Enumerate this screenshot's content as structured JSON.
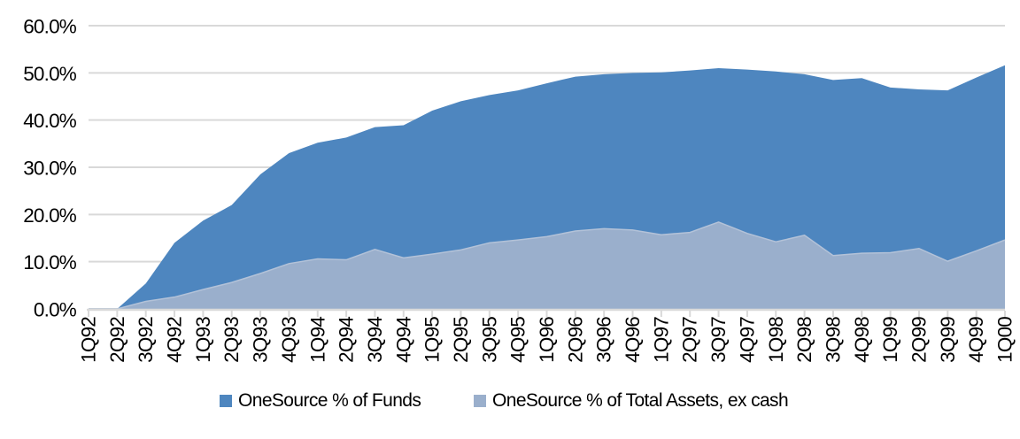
{
  "chart_data": {
    "type": "area",
    "title": "",
    "xlabel": "",
    "ylabel": "",
    "categories": [
      "1Q92",
      "2Q92",
      "3Q92",
      "4Q92",
      "1Q93",
      "2Q93",
      "3Q93",
      "4Q93",
      "1Q94",
      "2Q94",
      "3Q94",
      "4Q94",
      "1Q95",
      "2Q95",
      "3Q95",
      "4Q95",
      "1Q96",
      "2Q96",
      "3Q96",
      "4Q96",
      "1Q97",
      "2Q97",
      "3Q97",
      "4Q97",
      "1Q98",
      "2Q98",
      "3Q98",
      "4Q98",
      "1Q99",
      "2Q99",
      "3Q99",
      "4Q99",
      "1Q00"
    ],
    "series": [
      {
        "name": "OneSource % of Funds",
        "color": "#4E86BF",
        "values": [
          0.0,
          0.0,
          5.4,
          14.0,
          18.7,
          22.0,
          28.5,
          33.0,
          35.2,
          36.3,
          38.5,
          38.9,
          42.0,
          44.0,
          45.3,
          46.3,
          47.8,
          49.2,
          49.7,
          50.0,
          50.1,
          50.5,
          51.0,
          50.7,
          50.3,
          49.7,
          48.5,
          48.9,
          46.9,
          46.5,
          46.3,
          49.0,
          51.6
        ]
      },
      {
        "name": "OneSource % of Total Assets, ex cash",
        "color": "#9AAFCC",
        "values": [
          0.0,
          0.0,
          1.6,
          2.5,
          4.1,
          5.6,
          7.5,
          9.6,
          10.6,
          10.4,
          12.6,
          10.8,
          11.6,
          12.5,
          14.0,
          14.6,
          15.3,
          16.5,
          17.0,
          16.7,
          15.7,
          16.2,
          18.4,
          16.0,
          14.2,
          15.6,
          11.3,
          11.8,
          11.9,
          12.8,
          10.1,
          12.3,
          14.6
        ]
      }
    ],
    "ylim": [
      0,
      60
    ],
    "ytick_step": 10,
    "y_tick_labels": [
      "0.0%",
      "10.0%",
      "20.0%",
      "30.0%",
      "40.0%",
      "50.0%",
      "60.0%"
    ],
    "grid": true,
    "gridline_color": "#D9D9D9",
    "assets_edge_color": "#B3C2D8",
    "legend_position": "bottom"
  }
}
